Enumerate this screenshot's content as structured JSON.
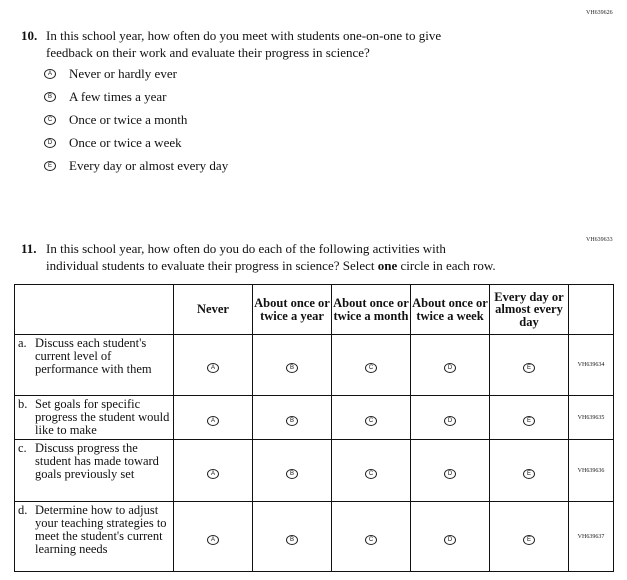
{
  "q10": {
    "code": "VH639626",
    "number": "10.",
    "text_line1": "In this school year, how often do you meet with students one-on-one to give",
    "text_line2": "feedback on their work and evaluate their progress in science?",
    "options": [
      {
        "letter": "A",
        "label": "Never or hardly ever"
      },
      {
        "letter": "B",
        "label": "A few times a year"
      },
      {
        "letter": "C",
        "label": "Once or twice a month"
      },
      {
        "letter": "D",
        "label": "Once or twice a week"
      },
      {
        "letter": "E",
        "label": "Every day or almost every day"
      }
    ]
  },
  "q11": {
    "code": "VH639633",
    "number": "11.",
    "text_line1": "In this school year, how often do you do each of the following activities with",
    "text_line2_pre": "individual students to evaluate their progress in science? Select ",
    "text_line2_bold": "one",
    "text_line2_post": " circle in each row.",
    "columns": [
      "Never",
      "About once or twice a year",
      "About once or twice a month",
      "About once or twice a week",
      "Every day or almost every day"
    ],
    "letters": [
      "A",
      "B",
      "C",
      "D",
      "E"
    ],
    "rows": [
      {
        "letter": "a.",
        "label": "Discuss each student's current level of performance with them",
        "code": "VH639634"
      },
      {
        "letter": "b.",
        "label": "Set goals for specific progress the student would like to make",
        "code": "VH639635"
      },
      {
        "letter": "c.",
        "label": "Discuss progress the student has made toward goals previously set",
        "code": "VH639636"
      },
      {
        "letter": "d.",
        "label": "Determine how to adjust your teaching strategies to meet the student's current learning needs",
        "code": "VH639637"
      }
    ]
  }
}
